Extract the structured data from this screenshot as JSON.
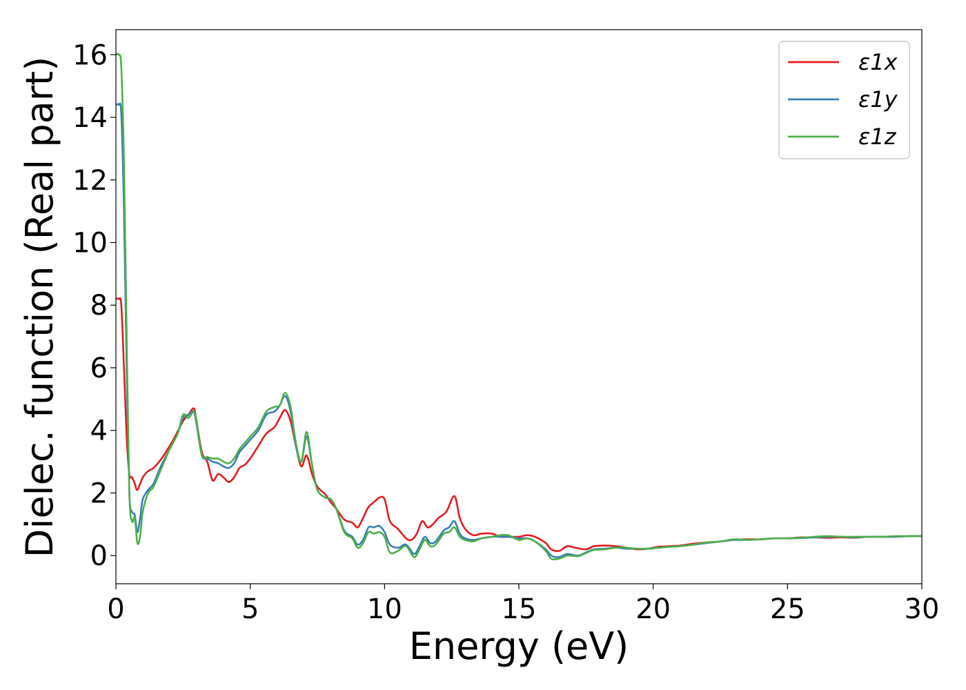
{
  "chart_data": {
    "type": "line",
    "xlabel": "Energy (eV)",
    "ylabel": "Dielec. function (Real part)",
    "xlim": [
      0,
      30
    ],
    "ylim": [
      -0.9,
      16.8
    ],
    "xticks": [
      0,
      5,
      10,
      15,
      20,
      25,
      30
    ],
    "yticks": [
      0,
      2,
      4,
      6,
      8,
      10,
      12,
      14,
      16
    ],
    "grid": false,
    "legend_position": "top-right",
    "series": [
      {
        "name": "ε1x",
        "color": "#e41a1c",
        "points": [
          [
            0,
            8.2
          ],
          [
            0.1,
            8.2
          ],
          [
            0.2,
            8.0
          ],
          [
            0.3,
            6.0
          ],
          [
            0.4,
            3.8
          ],
          [
            0.5,
            2.6
          ],
          [
            0.6,
            2.5
          ],
          [
            0.7,
            2.3
          ],
          [
            0.8,
            2.1
          ],
          [
            1.0,
            2.5
          ],
          [
            1.2,
            2.7
          ],
          [
            1.4,
            2.8
          ],
          [
            1.7,
            3.1
          ],
          [
            2.0,
            3.5
          ],
          [
            2.2,
            3.8
          ],
          [
            2.5,
            4.3
          ],
          [
            2.7,
            4.5
          ],
          [
            2.9,
            4.7
          ],
          [
            3.0,
            4.3
          ],
          [
            3.2,
            3.3
          ],
          [
            3.4,
            3.0
          ],
          [
            3.6,
            2.4
          ],
          [
            3.8,
            2.6
          ],
          [
            4.0,
            2.5
          ],
          [
            4.2,
            2.35
          ],
          [
            4.4,
            2.5
          ],
          [
            4.6,
            2.8
          ],
          [
            4.8,
            2.9
          ],
          [
            5.0,
            3.1
          ],
          [
            5.3,
            3.5
          ],
          [
            5.6,
            3.9
          ],
          [
            5.9,
            4.1
          ],
          [
            6.1,
            4.4
          ],
          [
            6.3,
            4.65
          ],
          [
            6.5,
            4.3
          ],
          [
            6.7,
            3.5
          ],
          [
            6.9,
            2.85
          ],
          [
            7.1,
            3.2
          ],
          [
            7.3,
            2.6
          ],
          [
            7.5,
            2.2
          ],
          [
            7.8,
            1.95
          ],
          [
            8.0,
            1.7
          ],
          [
            8.2,
            1.5
          ],
          [
            8.5,
            1.15
          ],
          [
            8.8,
            1.05
          ],
          [
            9.0,
            0.9
          ],
          [
            9.2,
            1.2
          ],
          [
            9.4,
            1.55
          ],
          [
            9.6,
            1.7
          ],
          [
            9.8,
            1.85
          ],
          [
            10.0,
            1.8
          ],
          [
            10.2,
            1.1
          ],
          [
            10.5,
            0.85
          ],
          [
            10.8,
            0.55
          ],
          [
            11.0,
            0.5
          ],
          [
            11.2,
            0.7
          ],
          [
            11.4,
            1.1
          ],
          [
            11.6,
            0.9
          ],
          [
            11.8,
            1.0
          ],
          [
            12.0,
            1.2
          ],
          [
            12.3,
            1.4
          ],
          [
            12.6,
            1.9
          ],
          [
            12.8,
            1.2
          ],
          [
            13.0,
            0.85
          ],
          [
            13.3,
            0.65
          ],
          [
            13.6,
            0.7
          ],
          [
            14.0,
            0.7
          ],
          [
            14.3,
            0.6
          ],
          [
            14.6,
            0.6
          ],
          [
            15.0,
            0.6
          ],
          [
            15.3,
            0.65
          ],
          [
            15.6,
            0.6
          ],
          [
            16.0,
            0.4
          ],
          [
            16.2,
            0.2
          ],
          [
            16.5,
            0.15
          ],
          [
            16.8,
            0.3
          ],
          [
            17.1,
            0.25
          ],
          [
            17.5,
            0.2
          ],
          [
            17.8,
            0.3
          ],
          [
            18.2,
            0.32
          ],
          [
            18.6,
            0.3
          ],
          [
            19.0,
            0.25
          ],
          [
            19.4,
            0.2
          ],
          [
            19.8,
            0.22
          ],
          [
            20.2,
            0.28
          ],
          [
            20.6,
            0.3
          ],
          [
            21.0,
            0.32
          ],
          [
            21.5,
            0.38
          ],
          [
            22.0,
            0.42
          ],
          [
            22.5,
            0.45
          ],
          [
            23.0,
            0.5
          ],
          [
            23.5,
            0.52
          ],
          [
            24.0,
            0.52
          ],
          [
            24.5,
            0.55
          ],
          [
            25.0,
            0.55
          ],
          [
            25.5,
            0.58
          ],
          [
            26.0,
            0.58
          ],
          [
            26.5,
            0.57
          ],
          [
            27.0,
            0.58
          ],
          [
            27.5,
            0.57
          ],
          [
            28.0,
            0.6
          ],
          [
            28.5,
            0.6
          ],
          [
            29.0,
            0.6
          ],
          [
            29.5,
            0.62
          ],
          [
            30.0,
            0.62
          ]
        ]
      },
      {
        "name": "ε1y",
        "color": "#377eb8",
        "points": [
          [
            0,
            14.4
          ],
          [
            0.1,
            14.4
          ],
          [
            0.2,
            14.1
          ],
          [
            0.3,
            11.0
          ],
          [
            0.4,
            6.0
          ],
          [
            0.5,
            2.0
          ],
          [
            0.6,
            1.4
          ],
          [
            0.7,
            1.3
          ],
          [
            0.8,
            0.75
          ],
          [
            0.9,
            1.2
          ],
          [
            1.0,
            1.8
          ],
          [
            1.2,
            2.1
          ],
          [
            1.4,
            2.3
          ],
          [
            1.7,
            2.9
          ],
          [
            2.0,
            3.4
          ],
          [
            2.3,
            3.9
          ],
          [
            2.5,
            4.4
          ],
          [
            2.7,
            4.5
          ],
          [
            2.9,
            4.6
          ],
          [
            3.0,
            4.2
          ],
          [
            3.2,
            3.2
          ],
          [
            3.4,
            3.1
          ],
          [
            3.6,
            3.0
          ],
          [
            3.8,
            2.95
          ],
          [
            4.0,
            2.85
          ],
          [
            4.2,
            2.8
          ],
          [
            4.4,
            2.95
          ],
          [
            4.6,
            3.3
          ],
          [
            4.8,
            3.5
          ],
          [
            5.0,
            3.7
          ],
          [
            5.3,
            4.0
          ],
          [
            5.6,
            4.5
          ],
          [
            5.9,
            4.6
          ],
          [
            6.1,
            4.8
          ],
          [
            6.3,
            5.1
          ],
          [
            6.5,
            4.6
          ],
          [
            6.7,
            3.5
          ],
          [
            6.9,
            3.0
          ],
          [
            7.1,
            3.8
          ],
          [
            7.3,
            2.9
          ],
          [
            7.5,
            2.1
          ],
          [
            7.8,
            1.85
          ],
          [
            8.0,
            1.8
          ],
          [
            8.2,
            1.5
          ],
          [
            8.5,
            0.8
          ],
          [
            8.8,
            0.6
          ],
          [
            9.0,
            0.35
          ],
          [
            9.2,
            0.5
          ],
          [
            9.4,
            0.9
          ],
          [
            9.6,
            0.9
          ],
          [
            9.8,
            0.95
          ],
          [
            10.0,
            0.75
          ],
          [
            10.2,
            0.35
          ],
          [
            10.5,
            0.25
          ],
          [
            10.8,
            0.35
          ],
          [
            11.1,
            0.05
          ],
          [
            11.3,
            0.3
          ],
          [
            11.5,
            0.6
          ],
          [
            11.7,
            0.4
          ],
          [
            11.9,
            0.45
          ],
          [
            12.2,
            0.8
          ],
          [
            12.4,
            0.9
          ],
          [
            12.6,
            1.1
          ],
          [
            12.8,
            0.7
          ],
          [
            13.0,
            0.55
          ],
          [
            13.3,
            0.5
          ],
          [
            13.6,
            0.55
          ],
          [
            14.0,
            0.6
          ],
          [
            14.3,
            0.6
          ],
          [
            14.6,
            0.6
          ],
          [
            15.0,
            0.55
          ],
          [
            15.3,
            0.55
          ],
          [
            15.6,
            0.45
          ],
          [
            16.0,
            0.2
          ],
          [
            16.2,
            0.0
          ],
          [
            16.5,
            -0.05
          ],
          [
            16.8,
            0.05
          ],
          [
            17.2,
            0.0
          ],
          [
            17.5,
            0.1
          ],
          [
            17.8,
            0.2
          ],
          [
            18.2,
            0.22
          ],
          [
            18.6,
            0.25
          ],
          [
            19.0,
            0.22
          ],
          [
            19.4,
            0.22
          ],
          [
            19.8,
            0.22
          ],
          [
            20.2,
            0.25
          ],
          [
            20.6,
            0.28
          ],
          [
            21.0,
            0.3
          ],
          [
            21.5,
            0.35
          ],
          [
            22.0,
            0.4
          ],
          [
            22.5,
            0.45
          ],
          [
            23.0,
            0.5
          ],
          [
            23.5,
            0.5
          ],
          [
            24.0,
            0.52
          ],
          [
            24.5,
            0.55
          ],
          [
            25.0,
            0.55
          ],
          [
            25.5,
            0.56
          ],
          [
            26.0,
            0.58
          ],
          [
            26.5,
            0.6
          ],
          [
            27.0,
            0.6
          ],
          [
            27.5,
            0.58
          ],
          [
            28.0,
            0.6
          ],
          [
            28.5,
            0.6
          ],
          [
            29.0,
            0.6
          ],
          [
            29.5,
            0.62
          ],
          [
            30.0,
            0.62
          ]
        ]
      },
      {
        "name": "ε1z",
        "color": "#4daf4a",
        "points": [
          [
            0,
            16.0
          ],
          [
            0.1,
            16.0
          ],
          [
            0.2,
            15.6
          ],
          [
            0.3,
            12.5
          ],
          [
            0.4,
            7.0
          ],
          [
            0.5,
            2.0
          ],
          [
            0.6,
            1.1
          ],
          [
            0.7,
            1.2
          ],
          [
            0.8,
            0.4
          ],
          [
            0.9,
            0.6
          ],
          [
            1.0,
            1.4
          ],
          [
            1.2,
            2.0
          ],
          [
            1.4,
            2.2
          ],
          [
            1.7,
            2.8
          ],
          [
            2.0,
            3.4
          ],
          [
            2.3,
            3.9
          ],
          [
            2.5,
            4.5
          ],
          [
            2.7,
            4.4
          ],
          [
            2.9,
            4.6
          ],
          [
            3.0,
            4.3
          ],
          [
            3.2,
            3.2
          ],
          [
            3.4,
            3.15
          ],
          [
            3.6,
            3.1
          ],
          [
            3.8,
            3.1
          ],
          [
            4.0,
            3.0
          ],
          [
            4.2,
            2.95
          ],
          [
            4.4,
            3.1
          ],
          [
            4.6,
            3.4
          ],
          [
            4.8,
            3.6
          ],
          [
            5.0,
            3.8
          ],
          [
            5.3,
            4.1
          ],
          [
            5.6,
            4.6
          ],
          [
            5.9,
            4.75
          ],
          [
            6.1,
            4.8
          ],
          [
            6.3,
            5.2
          ],
          [
            6.5,
            4.75
          ],
          [
            6.7,
            3.6
          ],
          [
            6.9,
            3.0
          ],
          [
            7.1,
            3.95
          ],
          [
            7.3,
            2.9
          ],
          [
            7.5,
            2.1
          ],
          [
            7.8,
            1.85
          ],
          [
            8.0,
            1.8
          ],
          [
            8.2,
            1.5
          ],
          [
            8.5,
            0.75
          ],
          [
            8.8,
            0.55
          ],
          [
            9.0,
            0.25
          ],
          [
            9.2,
            0.4
          ],
          [
            9.4,
            0.75
          ],
          [
            9.6,
            0.7
          ],
          [
            9.8,
            0.75
          ],
          [
            10.0,
            0.6
          ],
          [
            10.2,
            0.1
          ],
          [
            10.5,
            0.15
          ],
          [
            10.8,
            0.3
          ],
          [
            11.1,
            -0.05
          ],
          [
            11.3,
            0.2
          ],
          [
            11.5,
            0.5
          ],
          [
            11.7,
            0.3
          ],
          [
            11.9,
            0.35
          ],
          [
            12.2,
            0.7
          ],
          [
            12.4,
            0.75
          ],
          [
            12.6,
            0.9
          ],
          [
            12.8,
            0.6
          ],
          [
            13.0,
            0.5
          ],
          [
            13.3,
            0.45
          ],
          [
            13.6,
            0.55
          ],
          [
            14.0,
            0.6
          ],
          [
            14.3,
            0.65
          ],
          [
            14.6,
            0.65
          ],
          [
            15.0,
            0.5
          ],
          [
            15.3,
            0.55
          ],
          [
            15.6,
            0.45
          ],
          [
            16.0,
            0.15
          ],
          [
            16.2,
            -0.1
          ],
          [
            16.5,
            -0.1
          ],
          [
            16.8,
            0.0
          ],
          [
            17.2,
            -0.02
          ],
          [
            17.5,
            0.08
          ],
          [
            17.8,
            0.18
          ],
          [
            18.2,
            0.2
          ],
          [
            18.6,
            0.25
          ],
          [
            19.0,
            0.25
          ],
          [
            19.4,
            0.22
          ],
          [
            19.8,
            0.22
          ],
          [
            20.2,
            0.25
          ],
          [
            20.6,
            0.28
          ],
          [
            21.0,
            0.3
          ],
          [
            21.5,
            0.35
          ],
          [
            22.0,
            0.42
          ],
          [
            22.5,
            0.45
          ],
          [
            23.0,
            0.52
          ],
          [
            23.5,
            0.5
          ],
          [
            24.0,
            0.52
          ],
          [
            24.5,
            0.55
          ],
          [
            25.0,
            0.55
          ],
          [
            25.5,
            0.57
          ],
          [
            26.0,
            0.6
          ],
          [
            26.5,
            0.62
          ],
          [
            27.0,
            0.6
          ],
          [
            27.5,
            0.6
          ],
          [
            28.0,
            0.6
          ],
          [
            28.5,
            0.6
          ],
          [
            29.0,
            0.62
          ],
          [
            29.5,
            0.62
          ],
          [
            30.0,
            0.62
          ]
        ]
      }
    ]
  }
}
